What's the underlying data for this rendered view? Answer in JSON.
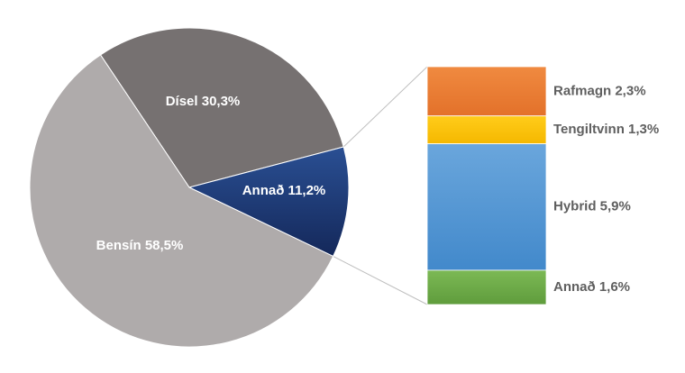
{
  "chart_data": {
    "type": "bar-of-pie",
    "pie": {
      "slices": [
        {
          "name": "Dísel",
          "value": 30.3,
          "label": "Dísel 30,3%",
          "color": "#767171"
        },
        {
          "name": "Annað",
          "value": 11.2,
          "label": "Annað 11,2%",
          "color": "#1f3b73"
        },
        {
          "name": "Bensín",
          "value": 58.5,
          "label": "Bensín 58,5%",
          "color": "#afabab"
        }
      ]
    },
    "bar": {
      "segments": [
        {
          "name": "Rafmagn",
          "value": 2.3,
          "label": "Rafmagn 2,3%",
          "color": "#ed7d31"
        },
        {
          "name": "Tengiltvinn",
          "value": 1.3,
          "label": "Tengiltvinn 1,3%",
          "color": "#ffc000"
        },
        {
          "name": "Hybrid",
          "value": 5.9,
          "label": "Hybrid 5,9%",
          "color": "#5b9bd5"
        },
        {
          "name": "Annað",
          "value": 1.6,
          "label": "Annað 1,6%",
          "color": "#70ad47"
        }
      ]
    }
  }
}
